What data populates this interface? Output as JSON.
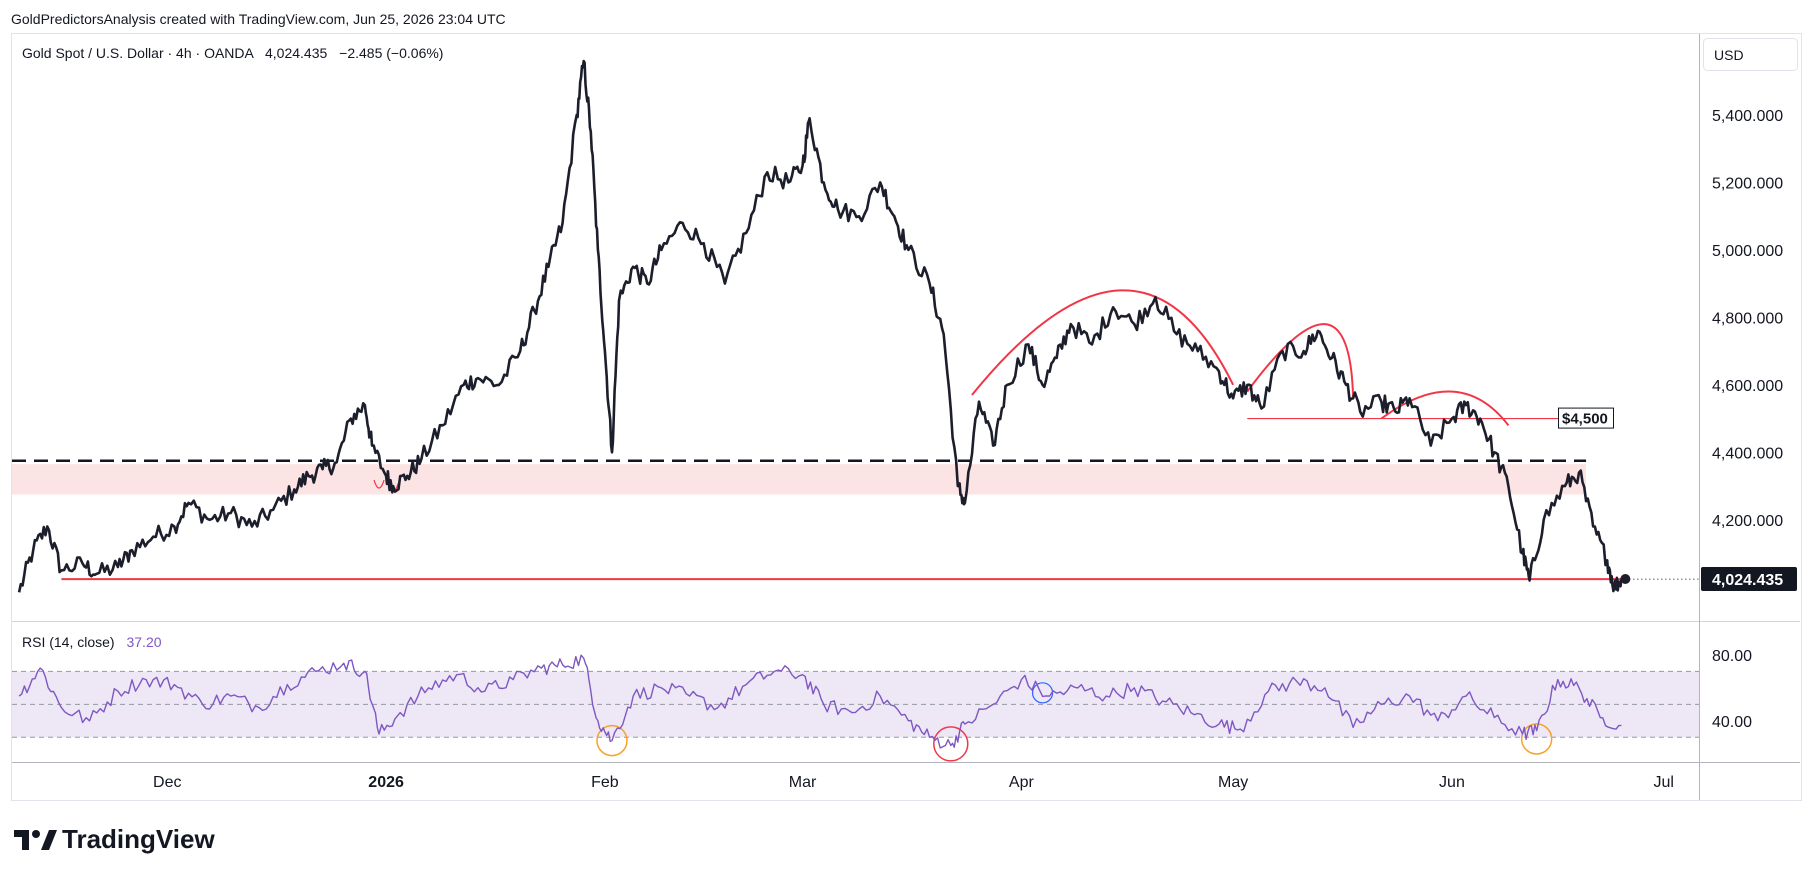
{
  "header": {
    "credit": "GoldPredictorsAnalysis created with TradingView.com, Jun 25, 2026 23:04 UTC"
  },
  "legend": {
    "symbol": "Gold Spot / U.S. Dollar · 4h · OANDA",
    "last": "4,024.435",
    "change": "−2.485 (−0.06%)"
  },
  "currency_label": "USD",
  "last_price_label": "4,024.435",
  "target_label": "$4,500",
  "rsi": {
    "label": "RSI (14, close)",
    "value": "37.20",
    "ticks": [
      "80.00",
      "40.00"
    ]
  },
  "brand": {
    "name": "TradingView"
  },
  "colors": {
    "price_line": "#1c1f2b",
    "annotation_red": "#f23645",
    "zone_fill": "#fde4e4",
    "rsi_line": "#7e57c2",
    "rsi_band": "#ede7f6",
    "orange_circle": "#f7a325",
    "blue_circle": "#2962ff"
  },
  "chart_data": [
    {
      "type": "line",
      "title": "Gold Spot / U.S. Dollar · 4h · OANDA",
      "ylabel": "USD",
      "y_ticks": [
        4200,
        4400,
        4600,
        4800,
        5000,
        5200,
        5400
      ],
      "y_tick_labels": [
        "4,200.000",
        "4,400.000",
        "4,600.000",
        "4,800.000",
        "5,000.000",
        "5,200.000",
        "5,400.000"
      ],
      "ylim": [
        3900,
        5640
      ],
      "x_ticks": [
        "2025-12-01",
        "2026-01-01",
        "2026-02-01",
        "2026-03-01",
        "2026-04-01",
        "2026-05-01",
        "2026-06-01",
        "2026-07-01"
      ],
      "x_tick_labels": [
        "Dec",
        "2026",
        "Feb",
        "Mar",
        "Apr",
        "May",
        "Jun",
        "Jul"
      ],
      "xlim": [
        "2025-11-09",
        "2026-07-06"
      ],
      "series": [
        {
          "values": [
            [
              "2025-11-10",
              3985
            ],
            [
              "2025-11-12",
              4110
            ],
            [
              "2025-11-14",
              4180
            ],
            [
              "2025-11-16",
              4050
            ],
            [
              "2025-11-19",
              4070
            ],
            [
              "2025-11-21",
              4040
            ],
            [
              "2025-11-24",
              4060
            ],
            [
              "2025-11-26",
              4110
            ],
            [
              "2025-11-29",
              4150
            ],
            [
              "2025-12-02",
              4180
            ],
            [
              "2025-12-04",
              4250
            ],
            [
              "2025-12-07",
              4200
            ],
            [
              "2025-12-10",
              4220
            ],
            [
              "2025-12-13",
              4180
            ],
            [
              "2025-12-16",
              4230
            ],
            [
              "2025-12-19",
              4290
            ],
            [
              "2025-12-21",
              4330
            ],
            [
              "2025-12-23",
              4350
            ],
            [
              "2025-12-25",
              4370
            ],
            [
              "2025-12-27",
              4500
            ],
            [
              "2025-12-29",
              4540
            ],
            [
              "2025-12-30",
              4420
            ],
            [
              "2026-01-01",
              4330
            ],
            [
              "2026-01-02",
              4300
            ],
            [
              "2026-01-04",
              4330
            ],
            [
              "2026-01-06",
              4380
            ],
            [
              "2026-01-09",
              4480
            ],
            [
              "2026-01-12",
              4600
            ],
            [
              "2026-01-14",
              4620
            ],
            [
              "2026-01-17",
              4600
            ],
            [
              "2026-01-20",
              4700
            ],
            [
              "2026-01-22",
              4820
            ],
            [
              "2026-01-24",
              4950
            ],
            [
              "2026-01-26",
              5080
            ],
            [
              "2026-01-28",
              5400
            ],
            [
              "2026-01-29",
              5560
            ],
            [
              "2026-01-30",
              5350
            ],
            [
              "2026-01-31",
              5000
            ],
            [
              "2026-02-01",
              4700
            ],
            [
              "2026-02-02",
              4400
            ],
            [
              "2026-02-03",
              4850
            ],
            [
              "2026-02-05",
              4950
            ],
            [
              "2026-02-07",
              4900
            ],
            [
              "2026-02-09",
              5000
            ],
            [
              "2026-02-12",
              5080
            ],
            [
              "2026-02-15",
              5020
            ],
            [
              "2026-02-18",
              4900
            ],
            [
              "2026-02-21",
              5050
            ],
            [
              "2026-02-24",
              5230
            ],
            [
              "2026-02-27",
              5200
            ],
            [
              "2026-03-01",
              5250
            ],
            [
              "2026-03-02",
              5390
            ],
            [
              "2026-03-04",
              5200
            ],
            [
              "2026-03-06",
              5120
            ],
            [
              "2026-03-09",
              5100
            ],
            [
              "2026-03-12",
              5200
            ],
            [
              "2026-03-14",
              5100
            ],
            [
              "2026-03-16",
              5000
            ],
            [
              "2026-03-19",
              4900
            ],
            [
              "2026-03-21",
              4750
            ],
            [
              "2026-03-23",
              4300
            ],
            [
              "2026-03-24",
              4250
            ],
            [
              "2026-03-26",
              4550
            ],
            [
              "2026-03-28",
              4420
            ],
            [
              "2026-03-30",
              4600
            ],
            [
              "2026-04-02",
              4720
            ],
            [
              "2026-04-04",
              4600
            ],
            [
              "2026-04-06",
              4680
            ],
            [
              "2026-04-08",
              4780
            ],
            [
              "2026-04-11",
              4720
            ],
            [
              "2026-04-14",
              4830
            ],
            [
              "2026-04-17",
              4780
            ],
            [
              "2026-04-20",
              4860
            ],
            [
              "2026-04-23",
              4750
            ],
            [
              "2026-04-26",
              4700
            ],
            [
              "2026-04-29",
              4640
            ],
            [
              "2026-05-01",
              4560
            ],
            [
              "2026-05-03",
              4600
            ],
            [
              "2026-05-05",
              4530
            ],
            [
              "2026-05-08",
              4700
            ],
            [
              "2026-05-11",
              4700
            ],
            [
              "2026-05-13",
              4760
            ],
            [
              "2026-05-15",
              4680
            ],
            [
              "2026-05-17",
              4600
            ],
            [
              "2026-05-19",
              4520
            ],
            [
              "2026-05-22",
              4550
            ],
            [
              "2026-05-24",
              4520
            ],
            [
              "2026-05-26",
              4560
            ],
            [
              "2026-05-29",
              4420
            ],
            [
              "2026-06-01",
              4500
            ],
            [
              "2026-06-03",
              4540
            ],
            [
              "2026-06-05",
              4500
            ],
            [
              "2026-06-07",
              4400
            ],
            [
              "2026-06-09",
              4300
            ],
            [
              "2026-06-11",
              4100
            ],
            [
              "2026-06-12",
              4020
            ],
            [
              "2026-06-14",
              4200
            ],
            [
              "2026-06-17",
              4300
            ],
            [
              "2026-06-19",
              4340
            ],
            [
              "2026-06-21",
              4180
            ],
            [
              "2026-06-23",
              4080
            ],
            [
              "2026-06-24",
              4000
            ],
            [
              "2026-06-25",
              4024.435
            ]
          ]
        }
      ],
      "annotations": {
        "horizontal_support": 4024,
        "dashed_resistance": 4375,
        "zone": [
          4275,
          4365
        ],
        "target": 4500,
        "arcs": [
          {
            "from": [
              "2026-03-25",
              4570
            ],
            "peak": [
              "2026-04-15",
              4880
            ],
            "to": [
              "2026-05-01",
              4600
            ]
          },
          {
            "from": [
              "2026-05-03",
              4580
            ],
            "peak": [
              "2026-05-14",
              4780
            ],
            "to": [
              "2026-05-18",
              4560
            ]
          },
          {
            "from": [
              "2026-05-22",
              4500
            ],
            "peak": [
              "2026-06-01",
              4580
            ],
            "to": [
              "2026-06-09",
              4480
            ]
          }
        ]
      }
    },
    {
      "type": "line",
      "title": "RSI (14, close)",
      "ylim": [
        15,
        100
      ],
      "y_ticks": [
        80,
        40
      ],
      "band": [
        30,
        70
      ],
      "midline": 50,
      "series": [
        {
          "values": [
            [
              "2025-11-10",
              55
            ],
            [
              "2025-11-13",
              72
            ],
            [
              "2025-11-16",
              48
            ],
            [
              "2025-11-20",
              40
            ],
            [
              "2025-11-24",
              58
            ],
            [
              "2025-11-28",
              65
            ],
            [
              "2025-12-02",
              62
            ],
            [
              "2025-12-06",
              50
            ],
            [
              "2025-12-10",
              55
            ],
            [
              "2025-12-14",
              48
            ],
            [
              "2025-12-18",
              62
            ],
            [
              "2025-12-22",
              70
            ],
            [
              "2025-12-26",
              75
            ],
            [
              "2025-12-29",
              70
            ],
            [
              "2025-12-31",
              32
            ],
            [
              "2026-01-03",
              45
            ],
            [
              "2026-01-07",
              60
            ],
            [
              "2026-01-11",
              68
            ],
            [
              "2026-01-15",
              58
            ],
            [
              "2026-01-19",
              65
            ],
            [
              "2026-01-23",
              72
            ],
            [
              "2026-01-26",
              74
            ],
            [
              "2026-01-29",
              78
            ],
            [
              "2026-01-31",
              40
            ],
            [
              "2026-02-02",
              28
            ],
            [
              "2026-02-05",
              55
            ],
            [
              "2026-02-09",
              60
            ],
            [
              "2026-02-13",
              55
            ],
            [
              "2026-02-17",
              48
            ],
            [
              "2026-02-21",
              62
            ],
            [
              "2026-02-25",
              70
            ],
            [
              "2026-03-01",
              68
            ],
            [
              "2026-03-04",
              50
            ],
            [
              "2026-03-08",
              45
            ],
            [
              "2026-03-12",
              55
            ],
            [
              "2026-03-16",
              40
            ],
            [
              "2026-03-19",
              30
            ],
            [
              "2026-03-22",
              25
            ],
            [
              "2026-03-24",
              38
            ],
            [
              "2026-03-28",
              50
            ],
            [
              "2026-04-01",
              65
            ],
            [
              "2026-04-05",
              55
            ],
            [
              "2026-04-09",
              60
            ],
            [
              "2026-04-13",
              55
            ],
            [
              "2026-04-17",
              60
            ],
            [
              "2026-04-21",
              52
            ],
            [
              "2026-04-25",
              45
            ],
            [
              "2026-04-29",
              38
            ],
            [
              "2026-05-02",
              35
            ],
            [
              "2026-05-06",
              58
            ],
            [
              "2026-05-10",
              64
            ],
            [
              "2026-05-14",
              60
            ],
            [
              "2026-05-18",
              36
            ],
            [
              "2026-05-22",
              50
            ],
            [
              "2026-05-26",
              55
            ],
            [
              "2026-05-30",
              40
            ],
            [
              "2026-06-03",
              55
            ],
            [
              "2026-06-07",
              42
            ],
            [
              "2026-06-11",
              32
            ],
            [
              "2026-06-13",
              34
            ],
            [
              "2026-06-16",
              65
            ],
            [
              "2026-06-19",
              60
            ],
            [
              "2026-06-22",
              42
            ],
            [
              "2026-06-25",
              37.2
            ]
          ]
        }
      ]
    }
  ]
}
